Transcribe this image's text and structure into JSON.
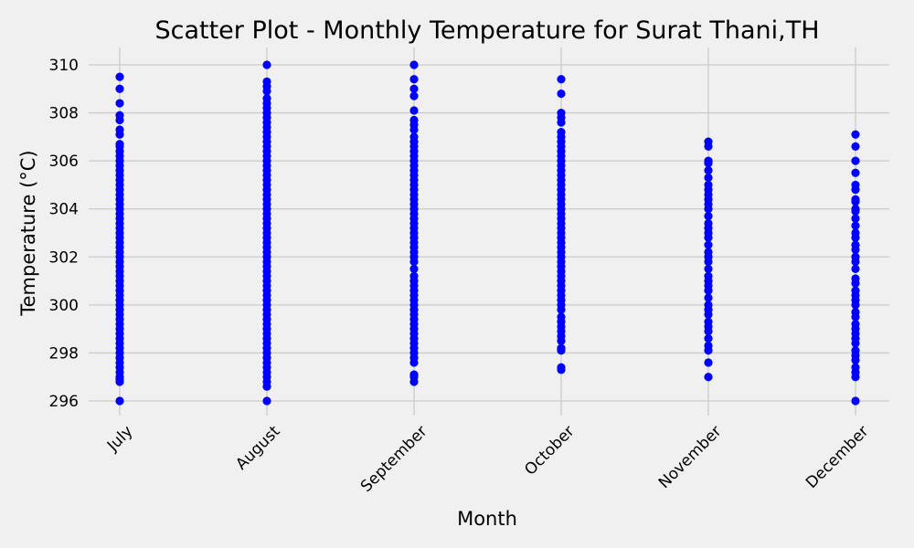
{
  "chart_data": {
    "type": "scatter",
    "title": "Scatter Plot - Monthly Temperature for Surat Thani,TH",
    "xlabel": "Month",
    "ylabel": "Temperature (°C)",
    "categories": [
      "July",
      "August",
      "September",
      "October",
      "November",
      "December"
    ],
    "yticks": [
      296,
      298,
      300,
      302,
      304,
      306,
      308,
      310
    ],
    "ylim": [
      295.5,
      310.7
    ],
    "grid": true,
    "marker_color": "#0000ff",
    "background_color": "#f0f0f0",
    "grid_color": "#cbcbcb",
    "series": [
      {
        "category": "July",
        "values": [
          296.0,
          296.8,
          296.9,
          297.0,
          297.2,
          297.4,
          297.6,
          297.8,
          298.0,
          298.2,
          298.4,
          298.6,
          298.8,
          299.0,
          299.2,
          299.4,
          299.6,
          299.8,
          300.0,
          300.2,
          300.4,
          300.6,
          300.8,
          301.0,
          301.2,
          301.4,
          301.6,
          301.8,
          302.0,
          302.2,
          302.4,
          302.6,
          302.8,
          303.0,
          303.2,
          303.4,
          303.6,
          303.8,
          304.0,
          304.2,
          304.4,
          304.6,
          304.8,
          305.0,
          305.2,
          305.4,
          305.6,
          305.8,
          306.0,
          306.2,
          306.4,
          306.6,
          306.7,
          307.1,
          307.3,
          307.7,
          307.9,
          308.4,
          309.0,
          309.5
        ]
      },
      {
        "category": "August",
        "values": [
          296.0,
          296.6,
          296.8,
          297.0,
          297.2,
          297.4,
          297.6,
          297.8,
          298.0,
          298.2,
          298.4,
          298.6,
          298.8,
          299.0,
          299.2,
          299.4,
          299.6,
          299.8,
          300.0,
          300.2,
          300.4,
          300.6,
          300.8,
          301.0,
          301.2,
          301.4,
          301.6,
          301.8,
          302.0,
          302.2,
          302.4,
          302.6,
          302.8,
          303.0,
          303.2,
          303.4,
          303.6,
          303.8,
          304.0,
          304.2,
          304.4,
          304.6,
          304.8,
          305.0,
          305.2,
          305.4,
          305.6,
          305.8,
          306.0,
          306.2,
          306.4,
          306.6,
          306.8,
          307.0,
          307.2,
          307.4,
          307.6,
          307.8,
          308.0,
          308.2,
          308.4,
          308.6,
          308.9,
          309.1,
          309.3,
          310.0
        ]
      },
      {
        "category": "September",
        "values": [
          296.8,
          297.0,
          297.1,
          297.6,
          297.8,
          298.0,
          298.2,
          298.4,
          298.6,
          298.8,
          299.0,
          299.2,
          299.4,
          299.6,
          299.8,
          300.0,
          300.2,
          300.4,
          300.6,
          300.8,
          301.0,
          301.2,
          301.5,
          301.8,
          302.0,
          302.2,
          302.4,
          302.6,
          302.8,
          303.0,
          303.2,
          303.4,
          303.6,
          303.8,
          304.0,
          304.2,
          304.4,
          304.6,
          304.8,
          305.0,
          305.2,
          305.4,
          305.6,
          305.8,
          306.0,
          306.2,
          306.4,
          306.6,
          306.8,
          307.0,
          307.3,
          307.5,
          307.7,
          308.1,
          308.7,
          309.0,
          309.4,
          310.0
        ]
      },
      {
        "category": "October",
        "values": [
          297.3,
          297.4,
          298.1,
          298.2,
          298.5,
          298.7,
          298.9,
          299.1,
          299.3,
          299.5,
          299.8,
          300.0,
          300.2,
          300.4,
          300.6,
          300.8,
          301.0,
          301.2,
          301.4,
          301.6,
          301.8,
          302.0,
          302.2,
          302.4,
          302.6,
          302.8,
          303.0,
          303.2,
          303.4,
          303.6,
          303.8,
          304.0,
          304.2,
          304.4,
          304.6,
          304.8,
          305.0,
          305.2,
          305.4,
          305.6,
          305.8,
          306.0,
          306.2,
          306.4,
          306.6,
          306.8,
          307.0,
          307.2,
          307.6,
          307.8,
          308.0,
          308.8,
          309.4
        ]
      },
      {
        "category": "November",
        "values": [
          297.0,
          297.6,
          298.1,
          298.3,
          298.6,
          298.9,
          299.1,
          299.3,
          299.6,
          299.8,
          300.0,
          300.3,
          300.6,
          300.8,
          301.0,
          301.2,
          301.5,
          301.8,
          302.0,
          302.2,
          302.5,
          302.8,
          303.0,
          303.2,
          303.4,
          303.7,
          304.0,
          304.2,
          304.4,
          304.6,
          304.8,
          305.0,
          305.3,
          305.6,
          305.9,
          306.0,
          306.6,
          306.8
        ]
      },
      {
        "category": "December",
        "values": [
          296.0,
          297.0,
          297.2,
          297.4,
          297.7,
          297.9,
          298.1,
          298.4,
          298.6,
          298.8,
          299.0,
          299.2,
          299.5,
          299.7,
          300.0,
          300.2,
          300.4,
          300.6,
          300.9,
          301.1,
          301.5,
          301.8,
          302.0,
          302.3,
          302.5,
          302.8,
          303.0,
          303.3,
          303.6,
          303.9,
          304.0,
          304.3,
          304.4,
          304.8,
          305.0,
          305.5,
          306.0,
          306.6,
          307.1
        ]
      }
    ]
  }
}
